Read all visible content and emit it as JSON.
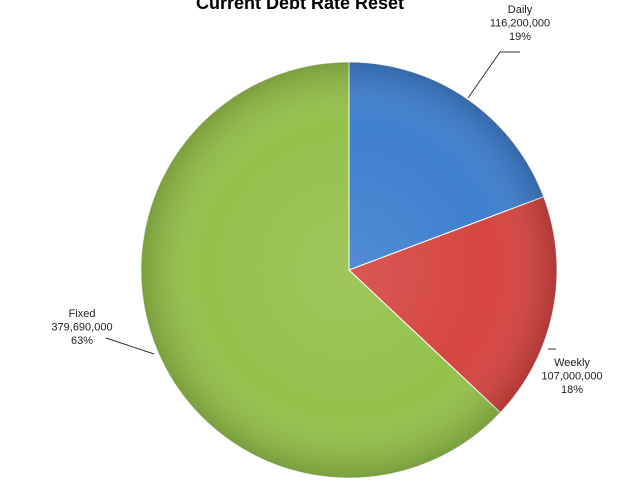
{
  "chart_data": {
    "type": "pie",
    "title": "Current Debt Rate Reset",
    "slices": [
      {
        "name": "Daily",
        "value": 116200000,
        "value_label": "116,200,000",
        "percent_label": "19%",
        "color": "#3f7fcf"
      },
      {
        "name": "Weekly",
        "value": 107000000,
        "value_label": "107,000,000",
        "percent_label": "18%",
        "color": "#d64541"
      },
      {
        "name": "Fixed",
        "value": 379690000,
        "value_label": "379,690,000",
        "percent_label": "63%",
        "color": "#94c14a"
      }
    ],
    "start_angle_deg": 0,
    "direction": "clockwise",
    "legend": "none"
  }
}
